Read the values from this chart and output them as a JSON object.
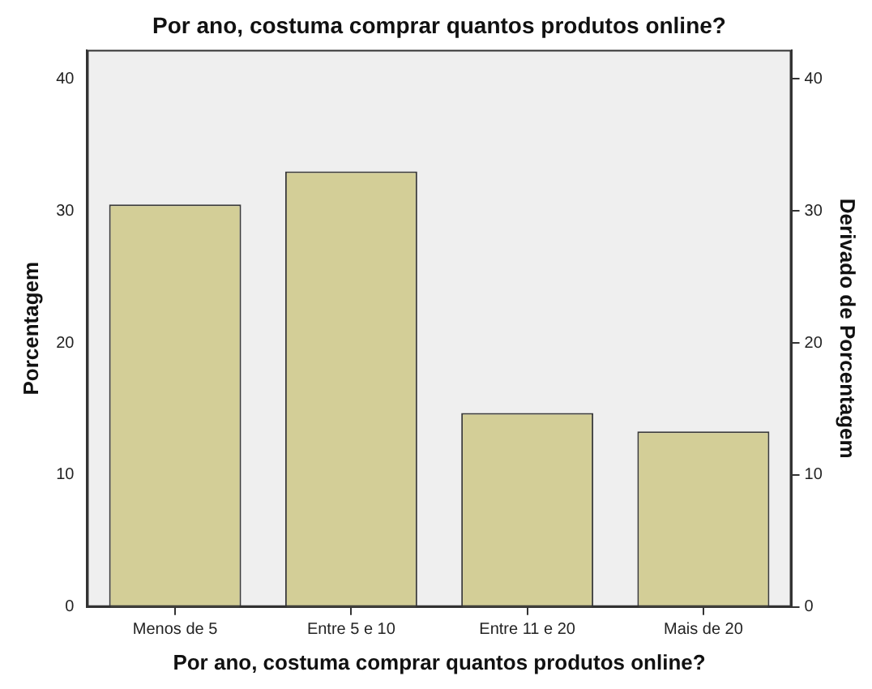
{
  "chart_data": {
    "type": "bar",
    "title": "Por ano, costuma comprar quantos produtos online?",
    "xlabel": "Por ano, costuma comprar quantos produtos online?",
    "ylabel": "Porcentagem",
    "y2label": "Derivado de Porcentagem",
    "categories": [
      "Menos de 5",
      "Entre 5 e 10",
      "Entre 11 e 20",
      "Mais de 20"
    ],
    "series": [
      {
        "color": "#d3ce97",
        "values": [
          30.5,
          33.0,
          14.7,
          13.3
        ]
      }
    ],
    "ylim": [
      0,
      42.2
    ],
    "yticks": [
      0,
      10,
      20,
      30,
      40
    ],
    "y2lim": [
      0,
      42.2
    ],
    "y2ticks": [
      0,
      10,
      20,
      30,
      40
    ],
    "grid": false,
    "legend": false
  }
}
